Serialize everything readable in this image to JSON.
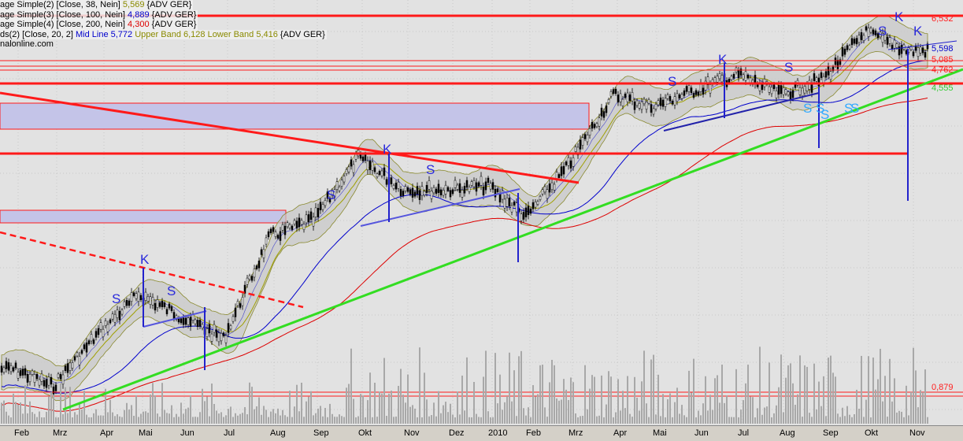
{
  "legend": [
    {
      "prefix": "age Simple(2) [Close, 38, Nein] ",
      "value": "5,569",
      "value_color": "#8a8a00",
      "suffix": " {ADV GER}"
    },
    {
      "prefix": "age Simple(3) [Close, 100, Nein] ",
      "value": "4,889",
      "value_color": "#0000cc",
      "suffix": " {ADV GER}"
    },
    {
      "prefix": "age Simple(4) [Close, 200, Nein] ",
      "value": "4,300",
      "value_color": "#dd0000",
      "suffix": " {ADV GER}"
    },
    {
      "prefix": "ds(2) [Close, 20, 2] ",
      "mid_label": "Mid Line 5,772",
      "band_label": " Upper Band 6,128 Lower Band 5,416",
      "suffix": " {ADV GER}"
    }
  ],
  "watermark": "nalonline.com",
  "price_labels": [
    {
      "text": "6,532",
      "color": "#ff2020"
    },
    {
      "text": "5,598",
      "color": "#0000cc"
    },
    {
      "text": "5,085",
      "color": "#ff2020"
    },
    {
      "text": "4,762",
      "color": "#ff2020"
    },
    {
      "text": "4,555",
      "color": "#33cc33"
    }
  ],
  "volume_label": {
    "text": "0,879",
    "color": "#ff2020"
  },
  "annotations": [
    "S",
    "K",
    "S",
    "S",
    "K",
    "S",
    "S",
    "S",
    "K",
    "S",
    "S",
    "S",
    "K",
    "S",
    "K",
    "S",
    "S"
  ],
  "colors": {
    "background": "#e2e2e2",
    "support": "#ff1a1a",
    "trend": "#33dd22",
    "ma38": "#a0a000",
    "ma100": "#0000cc",
    "ma200": "#dd0000",
    "band_fill": "#c8c8c8",
    "zone_fill": "#c4c4e8"
  },
  "chart_data": {
    "type": "candlestick",
    "x_ticks": [
      "Feb",
      "Mrz",
      "Apr",
      "Mai",
      "Jun",
      "Jul",
      "Aug",
      "Sep",
      "Okt",
      "Nov",
      "Dez",
      "2010",
      "Feb",
      "Mrz",
      "Apr",
      "Mai",
      "Jun",
      "Jul",
      "Aug",
      "Sep",
      "Okt",
      "Nov"
    ],
    "y_scale": "log",
    "close_by_month": [
      1.04,
      0.95,
      1.27,
      1.54,
      1.38,
      1.22,
      2.1,
      2.28,
      3.17,
      2.68,
      2.68,
      2.74,
      2.32,
      3.04,
      4.42,
      4.15,
      4.52,
      4.92,
      4.42,
      4.79,
      6.14,
      5.57
    ],
    "overlays": [
      "SMA 38",
      "SMA 100",
      "SMA 200",
      "Bollinger Bands 20,2"
    ],
    "has_volume": true,
    "grid": true
  }
}
